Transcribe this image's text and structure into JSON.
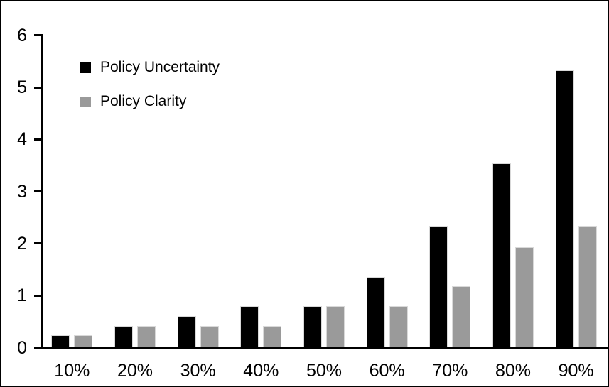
{
  "chart_data": {
    "type": "bar",
    "title": "",
    "xlabel": "",
    "ylabel": "",
    "categories": [
      "10%",
      "20%",
      "30%",
      "40%",
      "50%",
      "60%",
      "70%",
      "80%",
      "90%"
    ],
    "series": [
      {
        "name": "Policy Uncertainty",
        "color": "#000000",
        "values": [
          0.2,
          0.38,
          0.57,
          0.76,
          0.77,
          1.33,
          2.3,
          3.5,
          5.3
        ]
      },
      {
        "name": "Policy Clarity",
        "color": "#9a9a9a",
        "values": [
          0.2,
          0.38,
          0.38,
          0.38,
          0.77,
          0.77,
          1.15,
          1.9,
          2.3
        ]
      }
    ],
    "ylim": [
      0,
      6
    ],
    "yticks": [
      0,
      1,
      2,
      3,
      4,
      5,
      6
    ],
    "grid": false,
    "legend_position": "top-left-inside",
    "frame_color": "#000000",
    "background_color": "#ffffff"
  }
}
